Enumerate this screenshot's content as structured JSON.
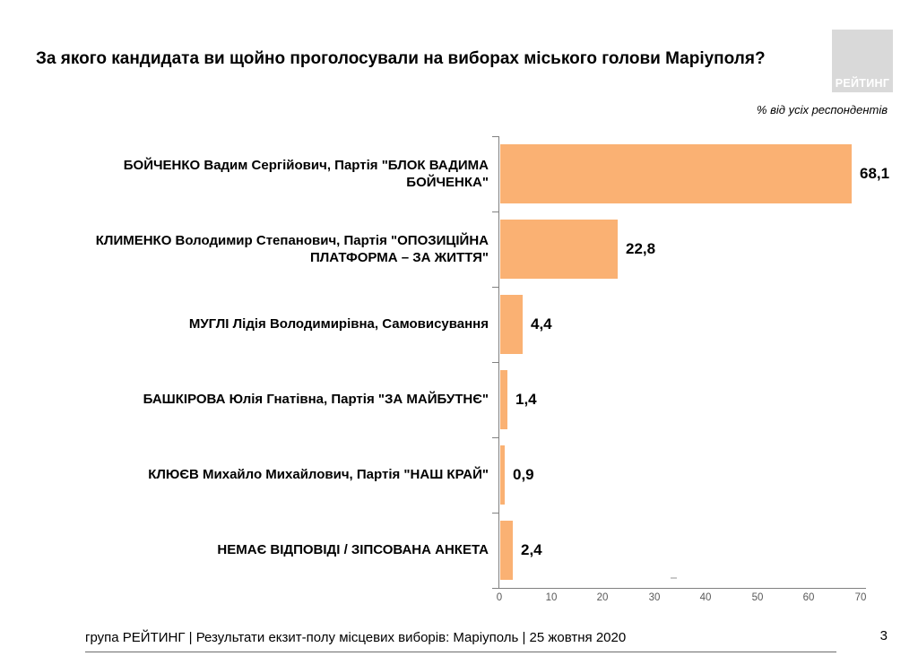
{
  "header": {
    "title": "За якого кандидата ви щойно проголосували на виборах міського голови Маріуполя?",
    "logo_text": "РЕЙТИНГ",
    "subtitle": "% від усіх респондентів"
  },
  "chart_data": {
    "type": "bar",
    "orientation": "horizontal",
    "title": "За якого кандидата ви щойно проголосували на виборах міського голови Маріуполя?",
    "subtitle": "% від усіх респондентів",
    "categories": [
      "БОЙЧЕНКО Вадим Сергійович, Партія \"БЛОК ВАДИМА БОЙЧЕНКА\"",
      "КЛИМЕНКО Володимир Степанович, Партія \"ОПОЗИЦІЙНА ПЛАТФОРМА – ЗА ЖИТТЯ\"",
      "МУГЛІ Лідія Володимирівна, Самовисування",
      "БАШКІРОВА Юлія Гнатівна, Партія \"ЗА МАЙБУТНЄ\"",
      "КЛЮЄВ Михайло Михайлович, Партія \"НАШ КРАЙ\"",
      "НЕМАЄ ВІДПОВІДІ / ЗІПСОВАНА АНКЕТА"
    ],
    "values": [
      68.1,
      22.8,
      4.4,
      1.4,
      0.9,
      2.4
    ],
    "value_labels": [
      "68,1",
      "22,8",
      "4,4",
      "1,4",
      "0,9",
      "2,4"
    ],
    "xlim": [
      0,
      70
    ],
    "x_ticks": [
      0,
      10,
      20,
      30,
      40,
      50,
      60,
      70
    ],
    "grid": false,
    "legend": false,
    "bar_color": "#FAB173",
    "axis_color": "#808080",
    "tick_label_color": "#595959"
  },
  "footer": {
    "text": "група РЕЙТИНГ | Результати екзит-полу місцевих виборів: Маріуполь | 25 жовтня 2020",
    "page_number": "3"
  }
}
